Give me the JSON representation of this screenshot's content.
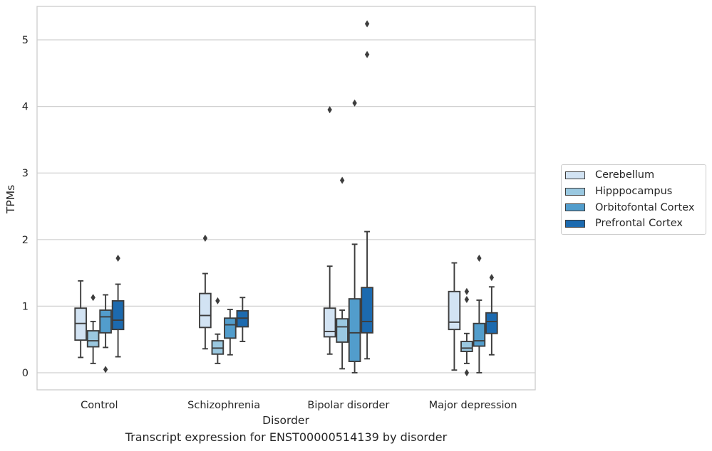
{
  "chart_data": {
    "type": "box",
    "caption": "Transcript expression for ENST00000514139 by disorder",
    "xlabel": "Disorder",
    "ylabel": "TPMs",
    "ylim": [
      -0.25,
      5.5
    ],
    "yticks": [
      0,
      1,
      2,
      3,
      4,
      5
    ],
    "grid": true,
    "legend_position": "right",
    "categories": [
      "Control",
      "Schizophrenia",
      "Bipolar disorder",
      "Major depression"
    ],
    "series": [
      {
        "name": "Cerebellum",
        "color": "#d2e3f3",
        "boxes": [
          {
            "whisker_low": 0.23,
            "q1": 0.49,
            "median": 0.74,
            "q3": 0.97,
            "whisker_high": 1.38,
            "outliers": []
          },
          {
            "whisker_low": 0.36,
            "q1": 0.68,
            "median": 0.86,
            "q3": 1.19,
            "whisker_high": 1.49,
            "outliers": [
              2.02
            ]
          },
          {
            "whisker_low": 0.28,
            "q1": 0.54,
            "median": 0.62,
            "q3": 0.97,
            "whisker_high": 1.6,
            "outliers": [
              3.95
            ]
          },
          {
            "whisker_low": 0.04,
            "q1": 0.65,
            "median": 0.76,
            "q3": 1.22,
            "whisker_high": 1.65,
            "outliers": []
          }
        ]
      },
      {
        "name": "Hipppocampus",
        "color": "#9ac8e0",
        "boxes": [
          {
            "whisker_low": 0.14,
            "q1": 0.39,
            "median": 0.48,
            "q3": 0.63,
            "whisker_high": 0.77,
            "outliers": [
              1.13
            ]
          },
          {
            "whisker_low": 0.14,
            "q1": 0.28,
            "median": 0.37,
            "q3": 0.48,
            "whisker_high": 0.58,
            "outliers": [
              1.08
            ]
          },
          {
            "whisker_low": 0.06,
            "q1": 0.46,
            "median": 0.69,
            "q3": 0.81,
            "whisker_high": 0.94,
            "outliers": [
              2.89
            ]
          },
          {
            "whisker_low": 0.14,
            "q1": 0.32,
            "median": 0.37,
            "q3": 0.47,
            "whisker_high": 0.59,
            "outliers": [
              1.22,
              1.1,
              0.0
            ]
          }
        ]
      },
      {
        "name": "Orbitofontal Cortex",
        "color": "#529dcc",
        "boxes": [
          {
            "whisker_low": 0.38,
            "q1": 0.6,
            "median": 0.84,
            "q3": 0.94,
            "whisker_high": 1.17,
            "outliers": [
              0.05
            ]
          },
          {
            "whisker_low": 0.27,
            "q1": 0.52,
            "median": 0.72,
            "q3": 0.82,
            "whisker_high": 0.95,
            "outliers": []
          },
          {
            "whisker_low": 0.0,
            "q1": 0.17,
            "median": 0.6,
            "q3": 1.11,
            "whisker_high": 1.93,
            "outliers": [
              4.05
            ]
          },
          {
            "whisker_low": 0.0,
            "q1": 0.4,
            "median": 0.48,
            "q3": 0.74,
            "whisker_high": 1.09,
            "outliers": [
              1.72
            ]
          }
        ]
      },
      {
        "name": "Prefrontal Cortex",
        "color": "#1c6aaf",
        "boxes": [
          {
            "whisker_low": 0.24,
            "q1": 0.65,
            "median": 0.79,
            "q3": 1.08,
            "whisker_high": 1.33,
            "outliers": [
              1.72
            ]
          },
          {
            "whisker_low": 0.47,
            "q1": 0.69,
            "median": 0.82,
            "q3": 0.93,
            "whisker_high": 1.13,
            "outliers": []
          },
          {
            "whisker_low": 0.21,
            "q1": 0.6,
            "median": 0.77,
            "q3": 1.28,
            "whisker_high": 2.12,
            "outliers": [
              4.78,
              5.24
            ]
          },
          {
            "whisker_low": 0.27,
            "q1": 0.59,
            "median": 0.77,
            "q3": 0.9,
            "whisker_high": 1.29,
            "outliers": [
              1.43
            ]
          }
        ]
      }
    ]
  }
}
